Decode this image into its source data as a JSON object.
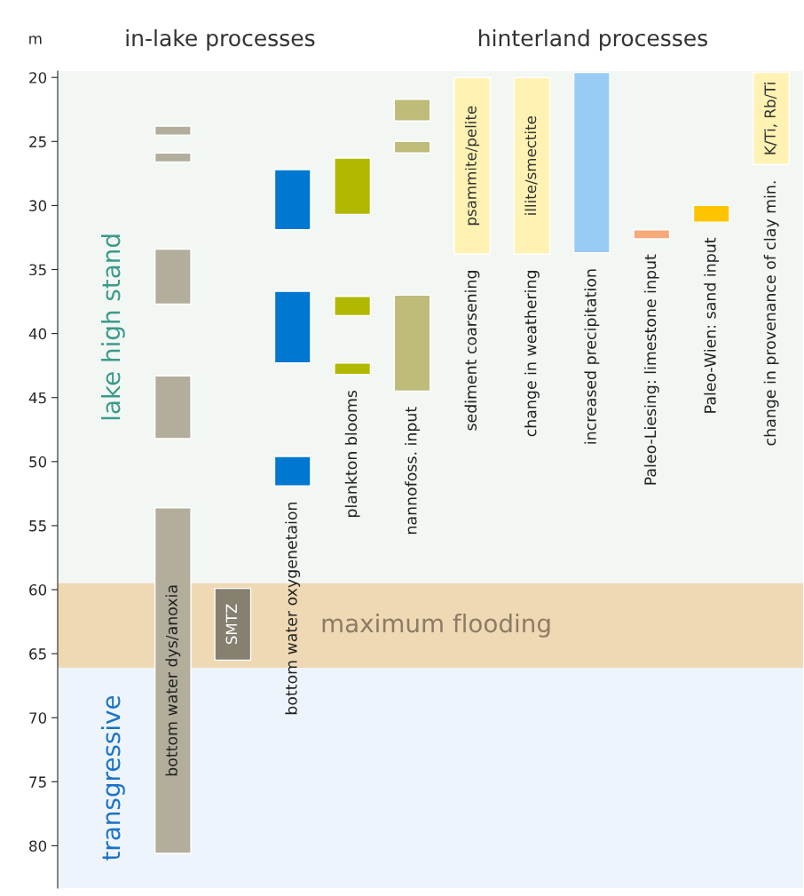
{
  "chart_data": {
    "type": "bar",
    "ylabel": "m",
    "categories": [
      "bottom water dys/anoxia",
      null,
      "bottom water oxygenetaion",
      "plankton blooms",
      "nannofoss. input",
      "sediment coarsening",
      "change in weathering",
      "increased precipitation",
      "Paleo-Liesing: limestone input",
      "Paleo-Wien: sand input",
      "change in provenance of clay min."
    ],
    "series": [
      {
        "base": [
          23.8,
          59.9,
          27.2,
          26.3,
          21.7,
          20.0,
          20.0,
          19.6,
          31.9,
          30.0,
          19.6
        ],
        "values": [
          0.7,
          5.6,
          4.7,
          4.4,
          1.7,
          13.8,
          13.8,
          14.1,
          0.7,
          1.3,
          7.2
        ],
        "colors": [
          "#b3ae9b",
          "#858070",
          "#0077d0",
          "#b2b800",
          "#bfbb78",
          "#fff2b3",
          "#fff2b3",
          "#99ccf5",
          "#f8a97a",
          "#ffc400",
          "#fff2b3"
        ],
        "value_labels": [
          null,
          "SMTZ",
          null,
          null,
          null,
          "psammite/pelite",
          "illite/smectite",
          null,
          null,
          null,
          "K/Ti, Rb/Ti"
        ]
      },
      {
        "base": [
          25.9,
          null,
          36.7,
          37.1,
          25.0,
          null,
          null,
          null,
          null,
          null,
          null
        ],
        "values": [
          0.7,
          null,
          5.6,
          1.5,
          0.9,
          null,
          null,
          null,
          null,
          null,
          null
        ],
        "colors": [
          "#b3ae9b",
          "#858070",
          "#0077d0",
          "#b2b800",
          "#bfbb78",
          "#fff2b3",
          "#fff2b3",
          "#99ccf5",
          "#f8a97a",
          "#ffc400",
          "#fff2b3"
        ]
      },
      {
        "base": [
          33.4,
          null,
          49.6,
          42.3,
          37.0,
          null,
          null,
          null,
          null,
          null,
          null
        ],
        "values": [
          4.3,
          null,
          2.3,
          0.9,
          7.5,
          null,
          null,
          null,
          null,
          null,
          null
        ],
        "colors": [
          "#b3ae9b",
          "#858070",
          "#0077d0",
          "#b2b800",
          "#bfbb78",
          "#fff2b3",
          "#fff2b3",
          "#99ccf5",
          "#f8a97a",
          "#ffc400",
          "#fff2b3"
        ]
      },
      {
        "base": [
          43.3,
          null,
          null,
          null,
          null,
          null,
          null,
          null,
          null,
          null,
          null
        ],
        "values": [
          4.9,
          null,
          null,
          null,
          null,
          null,
          null,
          null,
          null,
          null,
          null
        ],
        "colors": [
          "#b3ae9b",
          "#858070",
          "#0077d0",
          "#b2b800",
          "#bfbb78",
          "#fff2b3",
          "#fff2b3",
          "#99ccf5",
          "#f8a97a",
          "#ffc400",
          "#fff2b3"
        ]
      },
      {
        "base": [
          53.6,
          null,
          null,
          null,
          null,
          null,
          null,
          null,
          null,
          null,
          null
        ],
        "values": [
          27.0,
          null,
          null,
          null,
          null,
          null,
          null,
          null,
          null,
          null,
          null
        ],
        "colors": [
          "#b3ae9b",
          "#858070",
          "#0077d0",
          "#b2b800",
          "#bfbb78",
          "#fff2b3",
          "#fff2b3",
          "#99ccf5",
          "#f8a97a",
          "#ffc400",
          "#fff2b3"
        ]
      }
    ],
    "ylim": [
      83.3,
      19.5
    ],
    "yticks": [
      20,
      25,
      30,
      35,
      40,
      45,
      50,
      55,
      60,
      65,
      70,
      75,
      80
    ],
    "bands": [
      {
        "axis": "y",
        "from": 19.5,
        "to": 59.5,
        "label": "lake high stand",
        "color": "#f2f7f3"
      },
      {
        "axis": "y",
        "from": 59.5,
        "to": 66.1,
        "label": "maximum flooding",
        "color": "#efd8b4"
      },
      {
        "axis": "y",
        "from": 66.1,
        "to": 83.3,
        "label": "transgressive",
        "color": "#eef4fb"
      }
    ],
    "annotations": [
      "in-lake processes",
      "hinterland processes"
    ],
    "grid": false,
    "legend": false
  }
}
